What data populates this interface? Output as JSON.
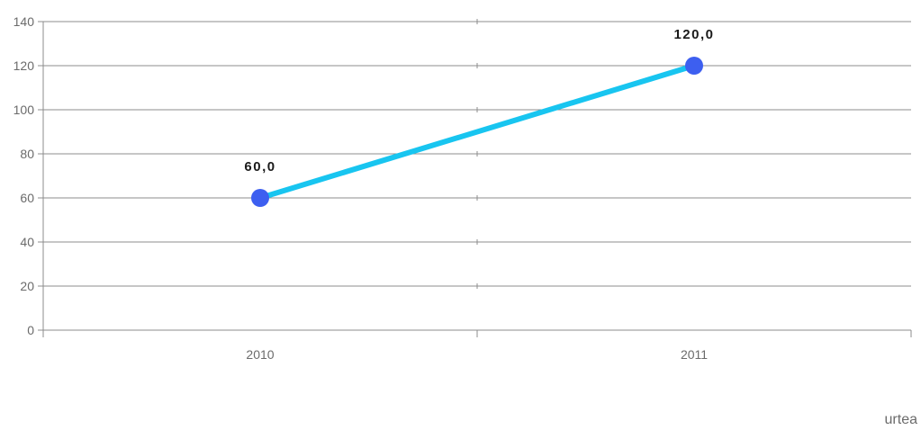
{
  "chart_data": {
    "type": "line",
    "x": [
      "2010",
      "2011"
    ],
    "series": [
      {
        "values": [
          60,
          120
        ],
        "color": "#18c5f0",
        "marker_color": "#3d5ff0"
      }
    ],
    "data_labels": [
      "60,0",
      "120,0"
    ],
    "ylim": [
      0,
      140
    ],
    "yticks": [
      0,
      20,
      40,
      60,
      80,
      100,
      120,
      140
    ],
    "grid": true
  },
  "footer": {
    "label": "urtea"
  }
}
